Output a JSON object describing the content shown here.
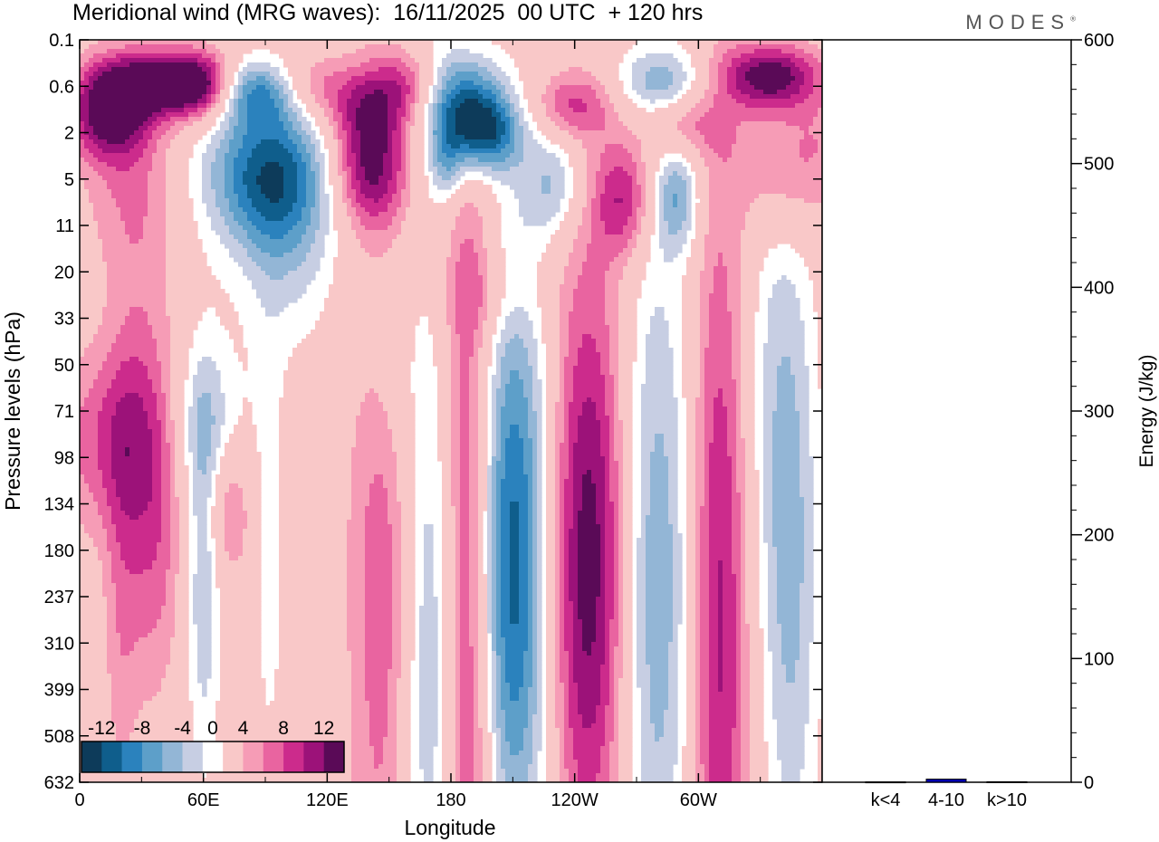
{
  "header": {
    "title": "Meridional wind (MRG waves):  16/11/2025  00 UTC  + 120 hrs",
    "logo": "MODES"
  },
  "chart_data": [
    {
      "type": "heatmap",
      "xlabel": "Longitude",
      "ylabel": "Pressure levels (hPa)",
      "x_ticks": [
        "0",
        "60E",
        "120E",
        "180",
        "120W",
        "60W"
      ],
      "x_tick_degrees": [
        0,
        60,
        120,
        180,
        240,
        300
      ],
      "xlim": [
        0,
        360
      ],
      "y_ticks": [
        "0.1",
        "0.6",
        "2",
        "5",
        "11",
        "20",
        "33",
        "50",
        "71",
        "98",
        "134",
        "180",
        "237",
        "310",
        "399",
        "508",
        "632"
      ],
      "colorbar": {
        "labels": [
          "-12",
          "-8",
          "-4",
          "0",
          "4",
          "8",
          "12"
        ],
        "levels": [
          -14,
          -12,
          -10,
          -8,
          -6,
          -4,
          -2,
          2,
          4,
          6,
          8,
          10,
          12,
          14
        ],
        "colors": [
          "#0d3b5a",
          "#0f5e8c",
          "#2b82bd",
          "#5d9fc9",
          "#93b6d6",
          "#c7cee3",
          "#ffffff",
          "#f9c8c8",
          "#f69cb6",
          "#e964a0",
          "#cc2b8c",
          "#9c1279",
          "#5a0a57"
        ]
      },
      "blobs": [
        {
          "lon": 15,
          "lev": 1.2,
          "w": 14,
          "h": 0.7,
          "v": 12
        },
        {
          "lon": 35,
          "lev": 0.5,
          "w": 18,
          "h": 0.5,
          "v": 10
        },
        {
          "lon": 58,
          "lev": 0.6,
          "w": 12,
          "h": 0.5,
          "v": 11
        },
        {
          "lon": 86,
          "lev": 0.7,
          "w": 14,
          "h": 0.5,
          "v": -9
        },
        {
          "lon": 110,
          "lev": 0.6,
          "w": 14,
          "h": 0.5,
          "v": 5
        },
        {
          "lon": 140,
          "lev": 1.0,
          "w": 16,
          "h": 0.6,
          "v": 6
        },
        {
          "lon": 162,
          "lev": 0.5,
          "w": 14,
          "h": 0.5,
          "v": 5
        },
        {
          "lon": 185,
          "lev": 0.9,
          "w": 13,
          "h": 0.9,
          "v": -14
        },
        {
          "lon": 198,
          "lev": 2.0,
          "w": 12,
          "h": 0.6,
          "v": -10
        },
        {
          "lon": 240,
          "lev": 1.0,
          "w": 14,
          "h": 0.5,
          "v": 6
        },
        {
          "lon": 282,
          "lev": 0.6,
          "w": 16,
          "h": 0.6,
          "v": -7
        },
        {
          "lon": 290,
          "lev": 1.5,
          "w": 14,
          "h": 0.5,
          "v": 6
        },
        {
          "lon": 335,
          "lev": 0.4,
          "w": 16,
          "h": 0.5,
          "v": 12
        },
        {
          "lon": 350,
          "lev": 2.5,
          "w": 22,
          "h": 1.0,
          "v": 4
        },
        {
          "lon": 90,
          "lev": 4.5,
          "w": 22,
          "h": 1.1,
          "v": -11
        },
        {
          "lon": 140,
          "lev": 4.0,
          "w": 13,
          "h": 0.9,
          "v": 10
        },
        {
          "lon": 178,
          "lev": 4.0,
          "w": 6,
          "h": 0.6,
          "v": -5
        },
        {
          "lon": 25,
          "lev": 6.0,
          "w": 16,
          "h": 1.2,
          "v": 3.5
        },
        {
          "lon": 100,
          "lev": 12.0,
          "w": 18,
          "h": 1.8,
          "v": -5
        },
        {
          "lon": 230,
          "lev": 5.5,
          "w": 10,
          "h": 0.8,
          "v": -6
        },
        {
          "lon": 264,
          "lev": 7.0,
          "w": 10,
          "h": 0.9,
          "v": 8
        },
        {
          "lon": 290,
          "lev": 7.0,
          "w": 8,
          "h": 0.8,
          "v": -7
        },
        {
          "lon": 340,
          "lev": 6.0,
          "w": 14,
          "h": 1.0,
          "v": 3
        },
        {
          "lon": 200,
          "lev": 25.0,
          "w": 16,
          "h": 0.7,
          "v": 2.5
        },
        {
          "lon": 30,
          "lev": 42.0,
          "w": 12,
          "h": 2.2,
          "v": 3
        },
        {
          "lon": 150,
          "lev": 45.0,
          "w": 10,
          "h": 1.8,
          "v": -3
        },
        {
          "lon": 335,
          "lev": 55.0,
          "w": 12,
          "h": 4.0,
          "v": -3
        },
        {
          "lon": 18,
          "lev": 88.0,
          "w": 22,
          "h": 1.4,
          "v": 6
        },
        {
          "lon": 60,
          "lev": 78.0,
          "w": 14,
          "h": 1.3,
          "v": -5
        },
        {
          "lon": 72,
          "lev": 140.0,
          "w": 8,
          "h": 1.0,
          "v": 5
        },
        {
          "lon": 20,
          "lev": 250.0,
          "w": 6,
          "h": 3.0,
          "v": 3
        },
        {
          "lon": 35,
          "lev": 185.0,
          "w": 10,
          "h": 2.2,
          "v": 5
        },
        {
          "lon": 60,
          "lev": 205.0,
          "w": 6,
          "h": 3.0,
          "v": -6
        },
        {
          "lon": 92,
          "lev": 190.0,
          "w": 6,
          "h": 3.5,
          "v": -3
        },
        {
          "lon": 148,
          "lev": 210.0,
          "w": 12,
          "h": 6.0,
          "v": 6
        },
        {
          "lon": 172,
          "lev": 330.0,
          "w": 12,
          "h": 6.0,
          "v": -8
        },
        {
          "lon": 188,
          "lev": 265.0,
          "w": 10,
          "h": 7.0,
          "v": 12
        },
        {
          "lon": 209,
          "lev": 195.0,
          "w": 14,
          "h": 4.5,
          "v": -14
        },
        {
          "lon": 247,
          "lev": 195.0,
          "w": 14,
          "h": 4.5,
          "v": 12
        },
        {
          "lon": 279,
          "lev": 220.0,
          "w": 14,
          "h": 5.5,
          "v": -8
        },
        {
          "lon": 310,
          "lev": 255.0,
          "w": 10,
          "h": 6.5,
          "v": 9
        },
        {
          "lon": 345,
          "lev": 220.0,
          "w": 10,
          "h": 5.0,
          "v": -6
        }
      ]
    },
    {
      "type": "bar",
      "ylabel": "Energy (J/kg)",
      "categories": [
        "k<4",
        "4-10",
        "k>10"
      ],
      "values": [
        0.3,
        2.5,
        0.4
      ],
      "ylim": [
        0,
        600
      ],
      "y_ticks": [
        0,
        100,
        200,
        300,
        400,
        500,
        600
      ],
      "bar_color": "#0000b4"
    }
  ]
}
